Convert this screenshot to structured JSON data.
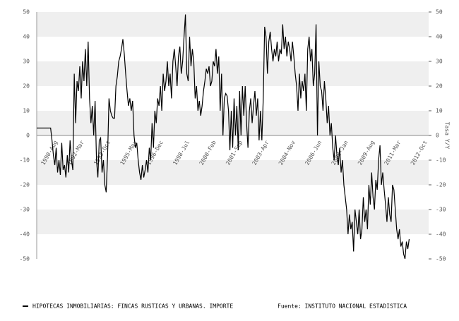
{
  "chart_data": {
    "type": "line",
    "y_label": "Tasa Y/Y",
    "source": "Fuente: INSTITUTO NACIONAL ESTADISTICA",
    "categories": [
      null,
      null,
      null,
      null,
      null,
      null,
      null,
      null,
      null,
      null,
      null,
      null,
      null,
      null,
      "1990-Aug",
      null,
      null,
      null,
      null,
      null,
      null,
      null,
      null,
      null,
      null,
      null,
      null,
      null,
      null,
      null,
      null,
      null,
      null,
      "1992-Mar",
      null,
      null,
      null,
      null,
      null,
      null,
      null,
      null,
      null,
      null,
      null,
      null,
      null,
      null,
      null,
      null,
      null,
      null,
      "1993-Oct",
      null,
      null,
      null,
      null,
      null,
      null,
      null,
      null,
      null,
      null,
      null,
      null,
      null,
      null,
      null,
      null,
      null,
      null,
      "1995-May",
      null,
      null,
      null,
      null,
      null,
      null,
      null,
      null,
      null,
      null,
      null,
      null,
      null,
      null,
      null,
      null,
      null,
      null,
      "1996-Dec",
      null,
      null,
      null,
      null,
      null,
      null,
      null,
      null,
      null,
      null,
      null,
      null,
      null,
      null,
      null,
      null,
      null,
      null,
      "1998-Jul",
      null,
      null,
      null,
      null,
      null,
      null,
      null,
      null,
      null,
      null,
      null,
      null,
      null,
      null,
      null,
      null,
      null,
      null,
      "2000-Feb",
      null,
      null,
      null,
      null,
      null,
      null,
      null,
      null,
      null,
      null,
      null,
      null,
      null,
      null,
      null,
      null,
      null,
      null,
      "2001-Sep",
      null,
      null,
      null,
      null,
      null,
      null,
      null,
      null,
      null,
      null,
      null,
      null,
      null,
      null,
      null,
      null,
      null,
      null,
      "2003-Apr",
      null,
      null,
      null,
      null,
      null,
      null,
      null,
      null,
      null,
      null,
      null,
      null,
      null,
      null,
      null,
      null,
      null,
      null,
      "2004-Nov",
      null,
      null,
      null,
      null,
      null,
      null,
      null,
      null,
      null,
      null,
      null,
      null,
      null,
      null,
      null,
      null,
      null,
      null,
      "2006-Jun",
      null,
      null,
      null,
      null,
      null,
      null,
      null,
      null,
      null,
      null,
      null,
      null,
      null,
      null,
      null,
      null,
      null,
      null,
      "2008-Jan",
      null,
      null,
      null,
      null,
      null,
      null,
      null,
      null,
      null,
      null,
      null,
      null,
      null,
      null,
      null,
      null,
      null,
      null,
      "2009-Aug",
      null,
      null,
      null,
      null,
      null,
      null,
      null,
      null,
      null,
      null,
      null,
      null,
      null,
      null,
      null,
      null,
      null,
      null,
      "2011-Mar",
      null,
      null,
      null,
      null,
      null,
      null,
      null,
      null,
      null,
      null,
      null,
      null,
      null,
      null,
      null,
      null,
      null,
      null,
      "2012-Oct",
      null,
      null
    ],
    "series": [
      {
        "name": "HIPOTECAS INMOBILIARIAS: FINCAS RUSTICAS Y URBANAS. IMPORTE",
        "color": "#000000",
        "values": [
          3,
          3,
          3,
          3,
          3,
          3,
          3,
          3,
          3,
          3,
          3,
          -2,
          -8,
          -12,
          -5,
          -15,
          -10,
          -16,
          -3,
          -14,
          -12,
          -17,
          -8,
          -15,
          -2,
          -10,
          -14,
          25,
          5,
          22,
          18,
          28,
          15,
          30,
          22,
          35,
          20,
          38,
          15,
          5,
          12,
          0,
          14,
          -10,
          -17,
          -2,
          -1,
          -15,
          -10,
          -20,
          -23,
          -8,
          15,
          10,
          8,
          7,
          7,
          20,
          24,
          30,
          32,
          35,
          39,
          33,
          25,
          18,
          12,
          15,
          10,
          14,
          0,
          -5,
          -3,
          -10,
          -15,
          -18,
          -12,
          -17,
          -14,
          -10,
          -15,
          -5,
          -10,
          5,
          -5,
          10,
          5,
          15,
          12,
          20,
          10,
          25,
          18,
          22,
          30,
          20,
          25,
          15,
          30,
          35,
          28,
          20,
          32,
          36,
          25,
          30,
          40,
          49,
          25,
          22,
          40,
          28,
          35,
          30,
          15,
          20,
          10,
          14,
          8,
          12,
          18,
          22,
          27,
          25,
          28,
          20,
          22,
          30,
          28,
          35,
          25,
          32,
          10,
          25,
          0,
          15,
          17,
          16,
          10,
          -6,
          10,
          -5,
          15,
          0,
          12,
          -6,
          18,
          0,
          20,
          8,
          20,
          5,
          -5,
          10,
          15,
          5,
          12,
          18,
          8,
          15,
          -2,
          10,
          -2,
          15,
          44,
          40,
          25,
          38,
          42,
          35,
          30,
          35,
          32,
          38,
          30,
          35,
          33,
          45,
          35,
          40,
          32,
          38,
          35,
          30,
          38,
          32,
          25,
          20,
          10,
          25,
          15,
          22,
          18,
          25,
          10,
          35,
          40,
          30,
          35,
          20,
          25,
          45,
          0,
          30,
          20,
          18,
          10,
          22,
          15,
          5,
          12,
          0,
          5,
          -5,
          -10,
          0,
          -8,
          -12,
          -5,
          -15,
          -10,
          -20,
          -25,
          -30,
          -40,
          -32,
          -38,
          -35,
          -47,
          -30,
          -35,
          -40,
          -30,
          -42,
          -38,
          -25,
          -35,
          -30,
          -38,
          -20,
          -28,
          -15,
          -25,
          -30,
          -18,
          -22,
          -10,
          -4,
          -20,
          -15,
          -22,
          -28,
          -35,
          -25,
          -32,
          -35,
          -20,
          -22,
          -30,
          -38,
          -42,
          -38,
          -45,
          -43,
          -48,
          -50,
          -43,
          -46,
          -42,
          null,
          null,
          null,
          null,
          null,
          null,
          null,
          null,
          null,
          null,
          null,
          null,
          null,
          null
        ]
      }
    ],
    "ylim": [
      -50,
      50
    ],
    "yticks": [
      -50,
      -40,
      -30,
      -20,
      -10,
      0,
      10,
      20,
      30,
      40,
      50
    ],
    "grid": true
  }
}
